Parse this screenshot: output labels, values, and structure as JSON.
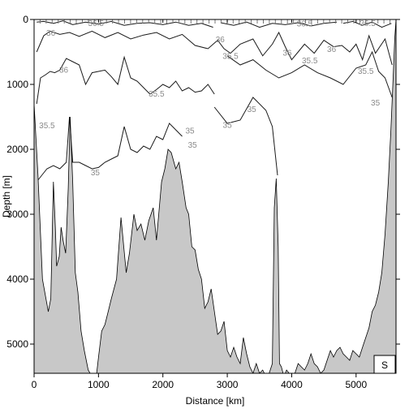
{
  "chart_data": {
    "type": "line",
    "title": "",
    "xlabel": "Distance [km]",
    "ylabel": "Depth [m]",
    "xlim": [
      0,
      5620
    ],
    "ylim": [
      5450,
      0
    ],
    "x_ticks": [
      "0",
      "1000",
      "2000",
      "3000",
      "4000",
      "5000"
    ],
    "y_ticks": [
      "0",
      "1000",
      "2000",
      "3000",
      "4000",
      "5000"
    ],
    "grid": false,
    "panel_label": "S",
    "contour_labels": [
      {
        "text": "36.5",
        "x": 960,
        "y": 60
      },
      {
        "text": "36",
        "x": 260,
        "y": 210
      },
      {
        "text": "36",
        "x": 460,
        "y": 780
      },
      {
        "text": "36",
        "x": 2890,
        "y": 310
      },
      {
        "text": "35.5",
        "x": 3050,
        "y": 570
      },
      {
        "text": "36",
        "x": 3930,
        "y": 520
      },
      {
        "text": "36.5",
        "x": 4200,
        "y": 70
      },
      {
        "text": "35.5",
        "x": 4280,
        "y": 640
      },
      {
        "text": "36",
        "x": 4620,
        "y": 460
      },
      {
        "text": "35.5",
        "x": 5150,
        "y": 800
      },
      {
        "text": "36.5",
        "x": 5180,
        "y": 60
      },
      {
        "text": "35",
        "x": 5300,
        "y": 1290
      },
      {
        "text": "35.5",
        "x": 1900,
        "y": 1150
      },
      {
        "text": "35.5",
        "x": 200,
        "y": 1640
      },
      {
        "text": "35",
        "x": 2420,
        "y": 1720
      },
      {
        "text": "35",
        "x": 3000,
        "y": 1630
      },
      {
        "text": "35",
        "x": 3380,
        "y": 1390
      },
      {
        "text": "35",
        "x": 2460,
        "y": 1940
      },
      {
        "text": "35",
        "x": 950,
        "y": 2360
      }
    ],
    "bathymetry": {
      "x": [
        0,
        60,
        130,
        220,
        260,
        300,
        330,
        350,
        390,
        420,
        450,
        490,
        530,
        560,
        600,
        640,
        680,
        730,
        780,
        840,
        900,
        960,
        1000,
        1050,
        1100,
        1150,
        1200,
        1280,
        1350,
        1430,
        1480,
        1550,
        1600,
        1660,
        1720,
        1780,
        1850,
        1900,
        1980,
        2030,
        2080,
        2130,
        2200,
        2250,
        2300,
        2360,
        2400,
        2450,
        2500,
        2550,
        2600,
        2650,
        2700,
        2750,
        2800,
        2850,
        2900,
        2950,
        3000,
        3050,
        3100,
        3150,
        3200,
        3250,
        3300,
        3350,
        3400,
        3450,
        3500,
        3550,
        3600,
        3650,
        3700,
        3730,
        3760,
        3790,
        3810,
        3840,
        3880,
        3920,
        3960,
        4000,
        4050,
        4100,
        4150,
        4200,
        4250,
        4300,
        4350,
        4400,
        4450,
        4500,
        4550,
        4600,
        4650,
        4700,
        4750,
        4800,
        4850,
        4900,
        4950,
        5000,
        5050,
        5100,
        5150,
        5200,
        5250,
        5300,
        5350,
        5400,
        5450,
        5500,
        5540,
        5580,
        5600,
        5620
      ],
      "depth": [
        1300,
        2400,
        4000,
        4500,
        4300,
        2500,
        3200,
        3800,
        3650,
        3200,
        3400,
        3600,
        2600,
        1500,
        2500,
        3900,
        4200,
        4800,
        5100,
        5400,
        5500,
        5550,
        5200,
        4800,
        4700,
        4500,
        4300,
        4000,
        3050,
        3900,
        3600,
        3000,
        3250,
        3150,
        3400,
        3100,
        2900,
        3400,
        2500,
        2300,
        2000,
        2050,
        2300,
        2200,
        2500,
        2900,
        3000,
        3500,
        3550,
        3850,
        4000,
        4450,
        4350,
        4150,
        4500,
        4850,
        4800,
        4650,
        5100,
        5200,
        5050,
        5200,
        5300,
        4900,
        5150,
        5350,
        5450,
        5300,
        5450,
        5400,
        5500,
        5450,
        5300,
        2900,
        2450,
        3500,
        5300,
        5350,
        5500,
        5400,
        5450,
        5500,
        5450,
        5300,
        5350,
        5400,
        5300,
        5150,
        5300,
        5350,
        5450,
        5400,
        5250,
        5100,
        5200,
        5100,
        5050,
        5150,
        5200,
        5250,
        5100,
        5150,
        5200,
        5050,
        4900,
        4750,
        4500,
        4400,
        4200,
        3900,
        3300,
        2500,
        1700,
        800,
        300,
        0
      ]
    },
    "contours": [
      {
        "level": "36.5",
        "x": [
          40,
          150,
          300,
          450,
          600,
          800,
          1000,
          1200,
          1400,
          1600,
          1800,
          2000,
          2200,
          2400,
          2600,
          2780
        ],
        "depth": [
          40,
          30,
          60,
          20,
          80,
          40,
          70,
          30,
          90,
          60,
          50,
          80,
          40,
          90,
          60,
          120
        ]
      },
      {
        "level": "36.5",
        "x": [
          2900,
          3100,
          3300,
          3500,
          3700,
          3900,
          4100,
          4300,
          4500,
          4700
        ],
        "depth": [
          50,
          90,
          40,
          120,
          60,
          80,
          50,
          100,
          60,
          40
        ]
      },
      {
        "level": "36.5",
        "x": [
          4800,
          4950,
          5100,
          5250,
          5400,
          5550
        ],
        "depth": [
          60,
          30,
          90,
          40,
          120,
          60
        ]
      },
      {
        "level": "36",
        "x": [
          40,
          150,
          250,
          400,
          550,
          700,
          900,
          1100,
          1300,
          1500,
          1700,
          1900,
          2100,
          2300,
          2500,
          2700,
          2850,
          2950,
          3050,
          3200,
          3400,
          3550,
          3700,
          3800,
          3900,
          4000,
          4100,
          4200,
          4350,
          4500,
          4650,
          4780,
          4900,
          5000,
          5100,
          5200,
          5300,
          5450,
          5560
        ],
        "depth": [
          500,
          250,
          180,
          230,
          200,
          260,
          180,
          280,
          200,
          300,
          240,
          200,
          300,
          230,
          400,
          450,
          320,
          450,
          520,
          380,
          300,
          560,
          380,
          200,
          420,
          620,
          500,
          380,
          520,
          320,
          420,
          400,
          500,
          380,
          620,
          250,
          520,
          300,
          700
        ]
      },
      {
        "level": "35.5",
        "x": [
          40,
          100,
          180,
          250,
          320,
          400,
          500,
          600,
          700,
          800,
          900,
          1000,
          1100,
          1200,
          1300,
          1400,
          1500,
          1600,
          1700,
          1800,
          1900,
          2000,
          2100,
          2200,
          2300,
          2400,
          2500,
          2600,
          2700,
          2800
        ],
        "depth": [
          1300,
          900,
          850,
          800,
          820,
          780,
          600,
          650,
          700,
          1000,
          820,
          800,
          780,
          880,
          1000,
          580,
          900,
          950,
          1050,
          1150,
          1080,
          1000,
          1050,
          950,
          1100,
          1050,
          1120,
          1100,
          1000,
          1150
        ]
      },
      {
        "level": "35.5",
        "x": [
          3000,
          3200,
          3400,
          3600,
          3800,
          4000,
          4200,
          4400,
          4600,
          4800,
          5000,
          5150,
          5250,
          5350,
          5450,
          5560
        ],
        "depth": [
          560,
          700,
          620,
          780,
          900,
          820,
          700,
          820,
          900,
          1000,
          750,
          700,
          500,
          800,
          900,
          1200
        ]
      },
      {
        "level": "35",
        "x": [
          40,
          120,
          200,
          300,
          400,
          500,
          550,
          600,
          700,
          800,
          900,
          1000,
          1100,
          1200,
          1300,
          1400,
          1500,
          1600,
          1700,
          1800,
          1900,
          2000,
          2100,
          2200,
          2300
        ],
        "depth": [
          2500,
          2400,
          2300,
          2250,
          2300,
          2200,
          1500,
          2200,
          2200,
          2250,
          2300,
          2280,
          2200,
          2150,
          2100,
          1650,
          2000,
          2050,
          1950,
          2000,
          1800,
          1850,
          1600,
          1700,
          1800
        ]
      },
      {
        "level": "35",
        "x": [
          2800,
          3000,
          3200,
          3400,
          3600,
          3700,
          3780
        ],
        "depth": [
          1350,
          1600,
          1550,
          1200,
          1400,
          1650,
          2400
        ]
      }
    ]
  }
}
